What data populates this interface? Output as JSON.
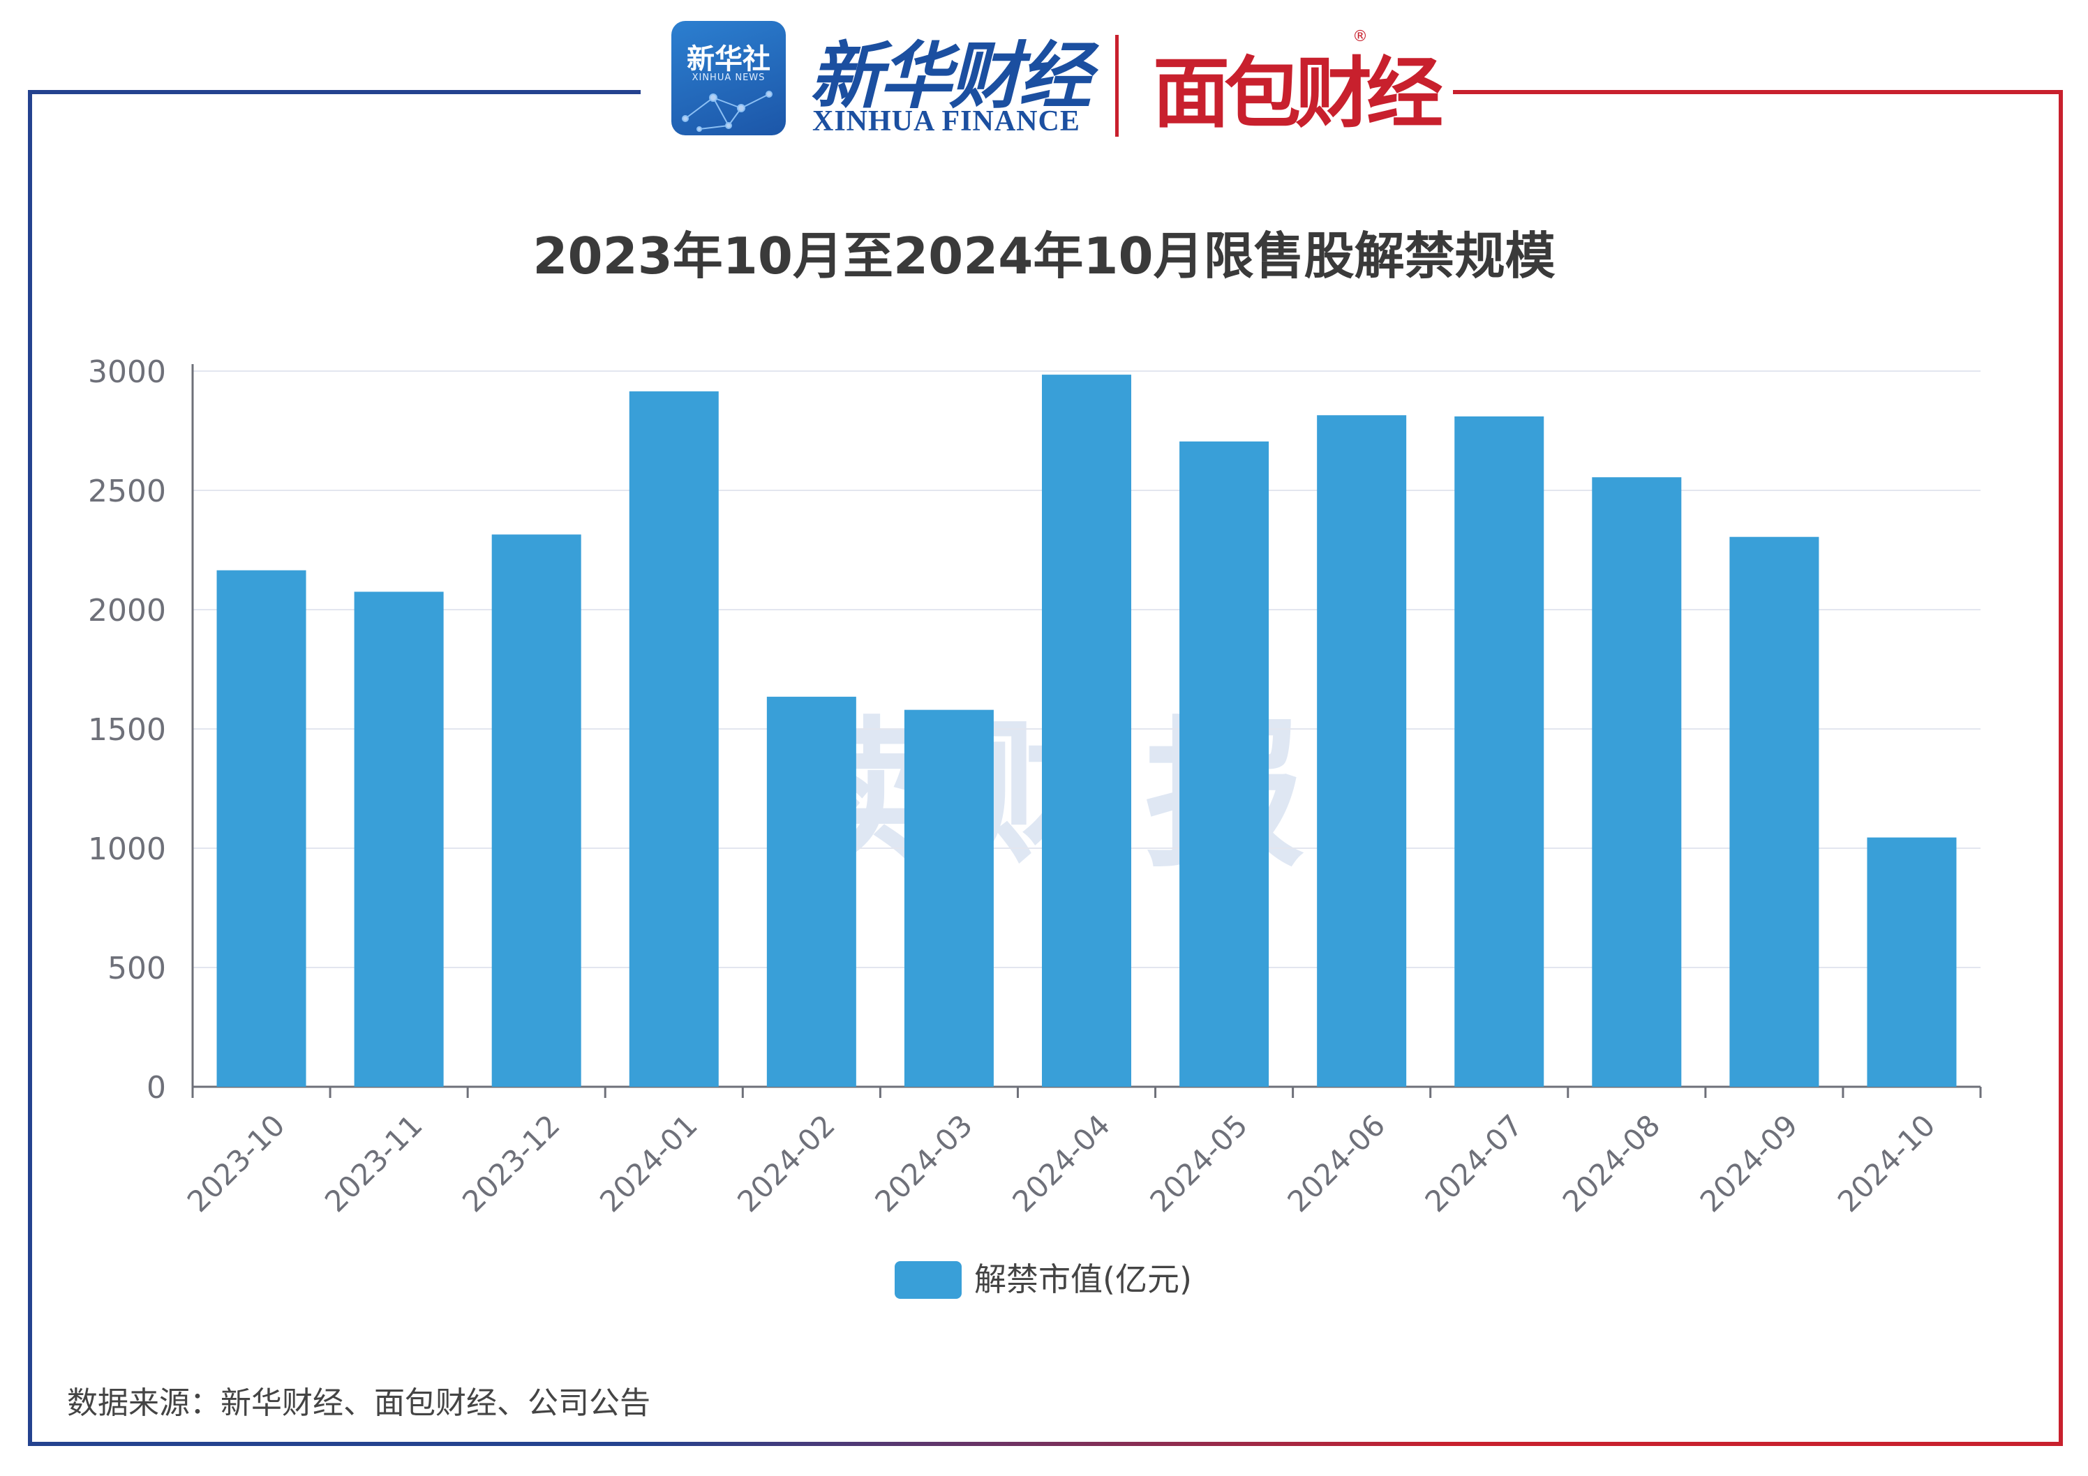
{
  "header": {
    "xinhua_badge": "新华社",
    "xinhua_badge_sub": "XINHUA NEWS",
    "xinhua_cn": "新华财经",
    "xinhua_en": "XINHUA FINANCE",
    "mianbao": "面包财经",
    "registered": "®"
  },
  "watermark": "读财报",
  "footer": {
    "source": "数据来源：新华财经、面包财经、公司公告"
  },
  "colors": {
    "bar": "#399fd8",
    "frame_left": "#24428f",
    "frame_right": "#c8202d",
    "grid": "#e3e6ef",
    "axis": "#6e7079"
  },
  "chart_data": {
    "type": "bar",
    "title": "2023年10月至2024年10月限售股解禁规模",
    "categories": [
      "2023-10",
      "2023-11",
      "2023-12",
      "2024-01",
      "2024-02",
      "2024-03",
      "2024-04",
      "2024-05",
      "2024-06",
      "2024-07",
      "2024-08",
      "2024-09",
      "2024-10"
    ],
    "series": [
      {
        "name": "解禁市值(亿元)",
        "values": [
          2165,
          2075,
          2315,
          2915,
          1635,
          1580,
          2985,
          2705,
          2815,
          2810,
          2555,
          2305,
          1045
        ]
      }
    ],
    "y_ticks": [
      0,
      500,
      1000,
      1500,
      2000,
      2500,
      3000
    ],
    "ylim": [
      0,
      3000
    ],
    "grid": true,
    "legend": "bottom-center",
    "x_label_rotation": "-45deg"
  }
}
